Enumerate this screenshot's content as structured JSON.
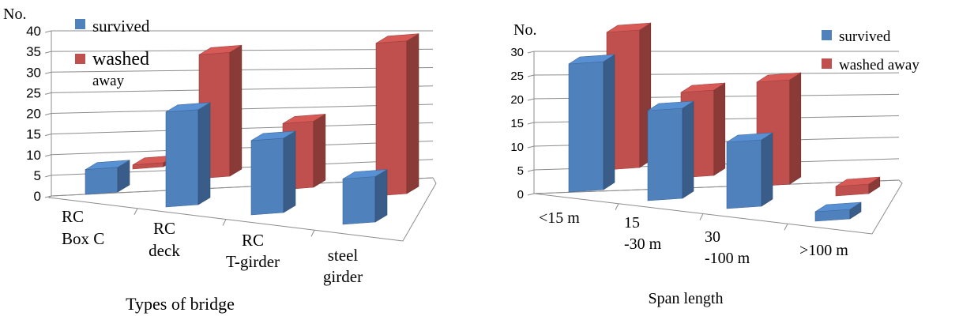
{
  "chart_data": [
    {
      "type": "bar",
      "ylabel": "No.",
      "xlabel": "Types of bridge",
      "categories": [
        [
          "RC",
          "Box C"
        ],
        [
          "RC",
          "deck"
        ],
        [
          "RC",
          "T-girder"
        ],
        [
          "steel",
          "girder"
        ]
      ],
      "yticks": [
        "0",
        "5",
        "10",
        "15",
        "20",
        "25",
        "30",
        "35",
        "40"
      ],
      "ylim": [
        0,
        40
      ],
      "series": [
        {
          "name": "survived",
          "legend_lines": [
            "survived"
          ],
          "color": "#4f81bd",
          "values": [
            6,
            23,
            18,
            11
          ]
        },
        {
          "name": "washed away",
          "legend_lines": [
            "washed",
            "away"
          ],
          "color": "#c0504d",
          "values": [
            1,
            30,
            16,
            37
          ]
        }
      ],
      "grid": true,
      "legend_position": "top-left",
      "style": "3d-column"
    },
    {
      "type": "bar",
      "ylabel": "No.",
      "xlabel": "Span length",
      "categories": [
        [
          "<15 m"
        ],
        [
          "15",
          "-30 m"
        ],
        [
          "30",
          "-100 m"
        ],
        [
          ">100 m"
        ]
      ],
      "yticks": [
        "0",
        "5",
        "10",
        "15",
        "20",
        "25",
        "30"
      ],
      "ylim": [
        0,
        30
      ],
      "series": [
        {
          "name": "survived",
          "legend_lines": [
            "survived"
          ],
          "color": "#4f81bd",
          "values": [
            27,
            19,
            14,
            2
          ]
        },
        {
          "name": "washed away",
          "legend_lines": [
            "washed away"
          ],
          "color": "#c0504d",
          "values": [
            29,
            18,
            22,
            2
          ]
        }
      ],
      "grid": true,
      "legend_position": "top-right",
      "style": "3d-column"
    }
  ]
}
